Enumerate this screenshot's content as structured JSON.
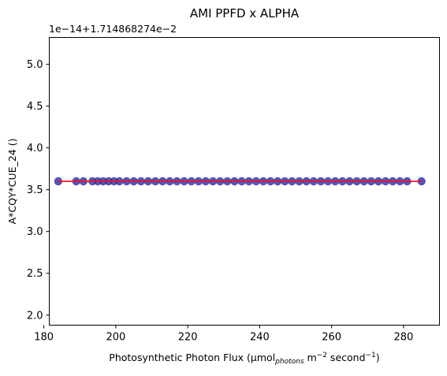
{
  "chart_data": {
    "type": "scatter",
    "title": "AMI PPFD x ALPHA",
    "xlabel": "Photosynthetic Photon Flux (μmol",
    "xlabel_sub": "photons",
    "xlabel_rest1": " m",
    "xlabel_sup1": "−2",
    "xlabel_rest2": " second",
    "xlabel_sup2": "−1",
    "xlabel_close": ")",
    "ylabel": "A*CQY*CUE_24 ()",
    "y_offset_label": "1e−14+1.714868274e−2",
    "xlim": [
      181.5,
      290
    ],
    "ylim": [
      1.88,
      5.32
    ],
    "x_ticks": [
      180,
      200,
      220,
      240,
      260,
      280
    ],
    "y_ticks": [
      "2.0",
      "2.5",
      "3.0",
      "3.5",
      "4.0",
      "4.5",
      "5.0"
    ],
    "marker_color": "#2c2a9c",
    "line_color": "#e8152b",
    "series": [
      {
        "x": [
          184.0,
          189.0,
          191.0,
          193.5,
          195.0,
          196.5,
          198.0,
          199.5,
          201.0,
          203.0,
          205.0,
          207.0,
          209.0,
          211.0,
          213.0,
          215.0,
          217.0,
          219.0,
          221.0,
          223.0,
          225.0,
          227.0,
          229.0,
          231.0,
          233.0,
          235.0,
          237.0,
          239.0,
          241.0,
          243.0,
          245.0,
          247.0,
          249.0,
          251.0,
          253.0,
          255.0,
          257.0,
          259.0,
          261.0,
          263.0,
          265.0,
          267.0,
          269.0,
          271.0,
          273.0,
          275.0,
          277.0,
          279.0,
          281.0,
          285.0
        ],
        "y": [
          3.6,
          3.6,
          3.6,
          3.6,
          3.6,
          3.6,
          3.6,
          3.6,
          3.6,
          3.6,
          3.6,
          3.6,
          3.6,
          3.6,
          3.6,
          3.6,
          3.6,
          3.6,
          3.6,
          3.6,
          3.6,
          3.6,
          3.6,
          3.6,
          3.6,
          3.6,
          3.6,
          3.6,
          3.6,
          3.6,
          3.6,
          3.6,
          3.6,
          3.6,
          3.6,
          3.6,
          3.6,
          3.6,
          3.6,
          3.6,
          3.6,
          3.6,
          3.6,
          3.6,
          3.6,
          3.6,
          3.6,
          3.6,
          3.6,
          3.6
        ]
      }
    ],
    "fit_line": {
      "x": [
        184.0,
        285.0
      ],
      "y": [
        3.6,
        3.6
      ]
    }
  }
}
